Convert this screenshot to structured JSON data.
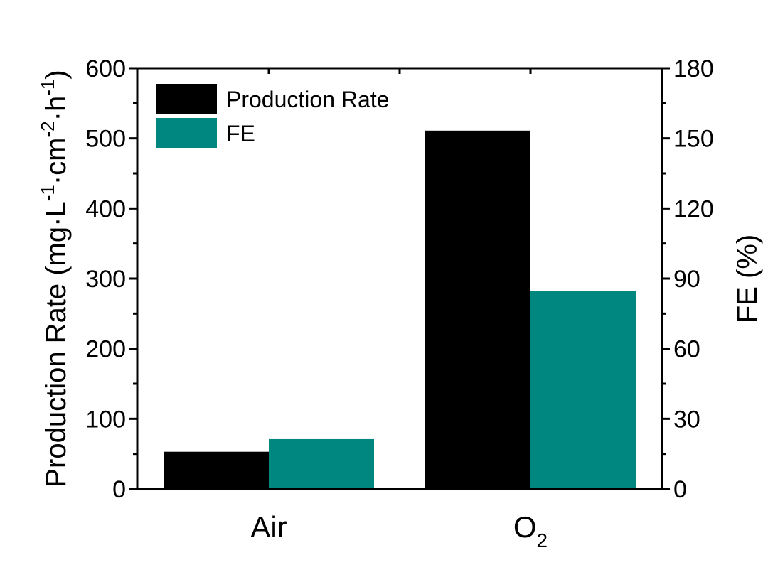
{
  "chart_data": {
    "type": "bar",
    "categories": [
      "Air",
      "O2"
    ],
    "category_labels": [
      {
        "base": "Air",
        "sub": ""
      },
      {
        "base": "O",
        "sub": "2"
      }
    ],
    "series": [
      {
        "name": "Production Rate",
        "axis": "left",
        "color": "#000000",
        "values": [
          53,
          511
        ]
      },
      {
        "name": "FE",
        "axis": "right",
        "color": "#00877f",
        "values": [
          21.3,
          84.6
        ]
      }
    ],
    "ylabel_left": {
      "parts": [
        {
          "t": "Production Rate (mg·L",
          "sup": false
        },
        {
          "t": "-1",
          "sup": true
        },
        {
          "t": "·cm",
          "sup": false
        },
        {
          "t": "-2",
          "sup": true
        },
        {
          "t": "·h",
          "sup": false
        },
        {
          "t": "-1",
          "sup": true
        },
        {
          "t": ")",
          "sup": false
        }
      ]
    },
    "ylabel_right": "FE (%)",
    "ylim_left": [
      0,
      600
    ],
    "ylim_right": [
      0,
      180
    ],
    "yticks_left": [
      0,
      100,
      200,
      300,
      400,
      500,
      600
    ],
    "yticks_right": [
      0,
      30,
      60,
      90,
      120,
      150,
      180
    ],
    "legend": {
      "position": "top-left",
      "entries": [
        "Production Rate",
        "FE"
      ]
    },
    "grid": false
  }
}
